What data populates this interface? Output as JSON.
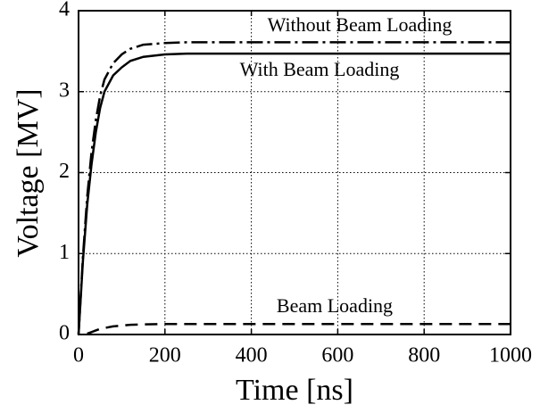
{
  "chart_data": {
    "type": "line",
    "xlabel": "Time [ns]",
    "ylabel": "Voltage [MV]",
    "x": [
      0,
      10,
      20,
      30,
      40,
      50,
      60,
      80,
      100,
      120,
      150,
      200,
      250,
      300,
      400,
      600,
      800,
      1000
    ],
    "series": [
      {
        "name": "Without Beam Loading",
        "color": "#000000",
        "style": "dashdot",
        "values": [
          0,
          0.95,
          1.7,
          2.25,
          2.65,
          2.95,
          3.15,
          3.35,
          3.46,
          3.53,
          3.58,
          3.6,
          3.61,
          3.61,
          3.61,
          3.61,
          3.61,
          3.61
        ]
      },
      {
        "name": "With Beam Loading",
        "color": "#000000",
        "style": "solid",
        "values": [
          0,
          0.9,
          1.6,
          2.1,
          2.5,
          2.8,
          3.0,
          3.2,
          3.3,
          3.38,
          3.43,
          3.46,
          3.47,
          3.47,
          3.47,
          3.47,
          3.47,
          3.47
        ]
      },
      {
        "name": "Beam Loading",
        "color": "#000000",
        "style": "dashed",
        "values": [
          null,
          null,
          0.01,
          0.03,
          0.05,
          0.07,
          0.08,
          0.1,
          0.11,
          0.12,
          0.125,
          0.13,
          0.13,
          0.13,
          0.13,
          0.13,
          0.13,
          0.13
        ]
      }
    ],
    "xlim": [
      0,
      1000
    ],
    "xticks": [
      0,
      200,
      400,
      600,
      800,
      1000
    ],
    "ylim": [
      0,
      4
    ],
    "yticks": [
      0,
      1,
      2,
      3,
      4
    ],
    "grid": true
  }
}
